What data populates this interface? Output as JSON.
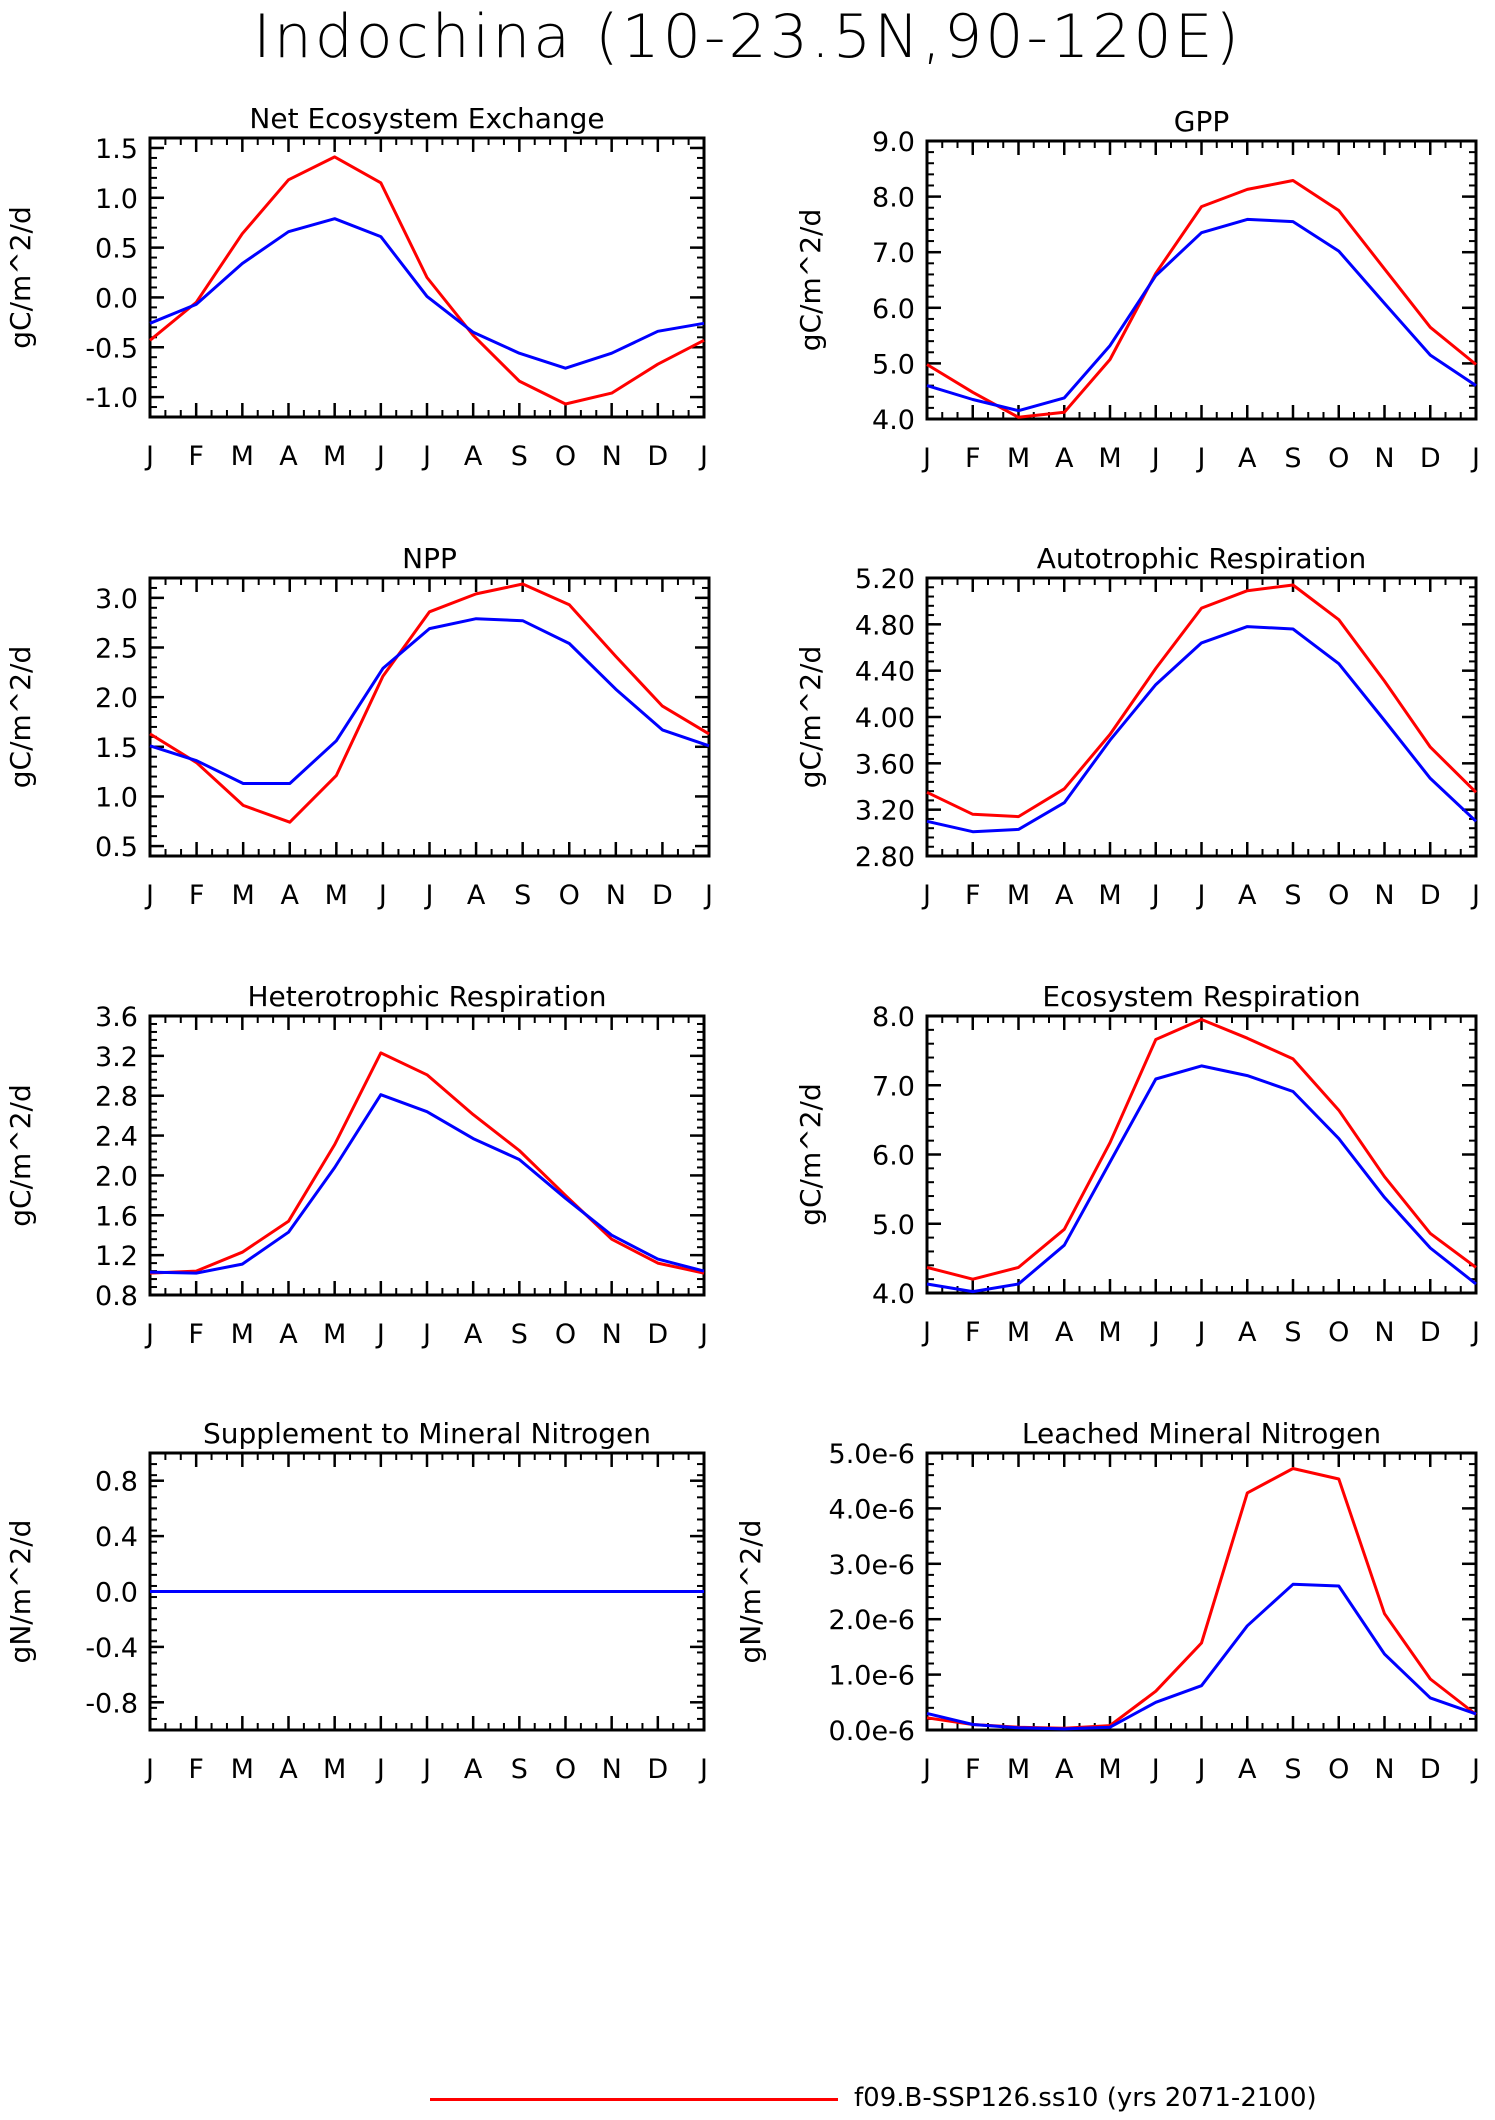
{
  "title": "Indochina (10-23.5N,90-120E)",
  "legend": {
    "label": "f09.B-SSP126.ss10 (yrs 2071-2100)",
    "color": "#ff0000"
  },
  "colors": {
    "red_series": "#ff0000",
    "blue_series": "#0000ff"
  },
  "chart_data": [
    {
      "type": "line",
      "title": "Net Ecosystem Exchange",
      "ylabel": "gC/m^2/d",
      "x": [
        "J",
        "F",
        "M",
        "A",
        "M",
        "J",
        "J",
        "A",
        "S",
        "O",
        "N",
        "D",
        "J"
      ],
      "ylim": [
        -1.2,
        1.6
      ],
      "yticks": [
        -1.0,
        -0.5,
        0.0,
        0.5,
        1.0,
        1.5
      ],
      "ytick_labels": [
        "-1.0",
        "-0.5",
        "0.0",
        "0.5",
        "1.0",
        "1.5"
      ],
      "series": [
        {
          "values": [
            -0.43,
            -0.05,
            0.64,
            1.18,
            1.41,
            1.15,
            0.2,
            -0.38,
            -0.84,
            -1.07,
            -0.96,
            -0.67,
            -0.43
          ]
        },
        {
          "values": [
            -0.26,
            -0.07,
            0.34,
            0.66,
            0.79,
            0.61,
            0.01,
            -0.35,
            -0.56,
            -0.71,
            -0.56,
            -0.34,
            -0.26
          ]
        }
      ]
    },
    {
      "type": "line",
      "title": "GPP",
      "ylabel": "gC/m^2/d",
      "x": [
        "J",
        "F",
        "M",
        "A",
        "M",
        "J",
        "J",
        "A",
        "S",
        "O",
        "N",
        "D",
        "J"
      ],
      "ylim": [
        4.0,
        9.0
      ],
      "yticks": [
        4.0,
        5.0,
        6.0,
        7.0,
        8.0,
        9.0
      ],
      "ytick_labels": [
        "4.0",
        "5.0",
        "6.0",
        "7.0",
        "8.0",
        "9.0"
      ],
      "series": [
        {
          "values": [
            4.98,
            4.48,
            4.03,
            4.12,
            5.07,
            6.62,
            7.82,
            8.13,
            8.29,
            7.75,
            6.7,
            5.65,
            4.98
          ]
        },
        {
          "values": [
            4.6,
            4.35,
            4.15,
            4.38,
            5.32,
            6.58,
            7.35,
            7.59,
            7.55,
            7.02,
            6.08,
            5.15,
            4.6
          ]
        }
      ]
    },
    {
      "type": "line",
      "title": "NPP",
      "ylabel": "gC/m^2/d",
      "x": [
        "J",
        "F",
        "M",
        "A",
        "M",
        "J",
        "J",
        "A",
        "S",
        "O",
        "N",
        "D",
        "J"
      ],
      "ylim": [
        0.4,
        3.2
      ],
      "yticks": [
        0.5,
        1.0,
        1.5,
        2.0,
        2.5,
        3.0
      ],
      "ytick_labels": [
        "0.5",
        "1.0",
        "1.5",
        "2.0",
        "2.5",
        "3.0"
      ],
      "series": [
        {
          "values": [
            1.63,
            1.34,
            0.91,
            0.74,
            1.21,
            2.21,
            2.86,
            3.04,
            3.14,
            2.93,
            2.41,
            1.91,
            1.63
          ]
        },
        {
          "values": [
            1.51,
            1.36,
            1.13,
            1.13,
            1.56,
            2.29,
            2.69,
            2.79,
            2.77,
            2.54,
            2.08,
            1.67,
            1.51
          ]
        }
      ]
    },
    {
      "type": "line",
      "title": "Autotrophic Respiration",
      "ylabel": "gC/m^2/d",
      "x": [
        "J",
        "F",
        "M",
        "A",
        "M",
        "J",
        "J",
        "A",
        "S",
        "O",
        "N",
        "D",
        "J"
      ],
      "ylim": [
        2.8,
        5.2
      ],
      "yticks": [
        2.8,
        3.2,
        3.6,
        4.0,
        4.4,
        4.8,
        5.2
      ],
      "ytick_labels": [
        "2.80",
        "3.20",
        "3.60",
        "4.00",
        "4.40",
        "4.80",
        "5.20"
      ],
      "series": [
        {
          "values": [
            3.35,
            3.16,
            3.14,
            3.38,
            3.85,
            4.42,
            4.94,
            5.09,
            5.14,
            4.84,
            4.31,
            3.74,
            3.35
          ]
        },
        {
          "values": [
            3.1,
            3.01,
            3.03,
            3.26,
            3.8,
            4.28,
            4.64,
            4.78,
            4.76,
            4.46,
            3.97,
            3.47,
            3.1
          ]
        }
      ]
    },
    {
      "type": "line",
      "title": "Heterotrophic Respiration",
      "ylabel": "gC/m^2/d",
      "x": [
        "J",
        "F",
        "M",
        "A",
        "M",
        "J",
        "J",
        "A",
        "S",
        "O",
        "N",
        "D",
        "J"
      ],
      "ylim": [
        0.8,
        3.6
      ],
      "yticks": [
        0.8,
        1.2,
        1.6,
        2.0,
        2.4,
        2.8,
        3.2,
        3.6
      ],
      "ytick_labels": [
        "0.8",
        "1.2",
        "1.6",
        "2.0",
        "2.4",
        "2.8",
        "3.2",
        "3.6"
      ],
      "series": [
        {
          "values": [
            1.02,
            1.04,
            1.23,
            1.54,
            2.31,
            3.23,
            3.01,
            2.61,
            2.25,
            1.8,
            1.36,
            1.12,
            1.02
          ]
        },
        {
          "values": [
            1.03,
            1.02,
            1.11,
            1.43,
            2.08,
            2.81,
            2.64,
            2.37,
            2.16,
            1.77,
            1.4,
            1.16,
            1.04
          ]
        }
      ]
    },
    {
      "type": "line",
      "title": "Ecosystem Respiration",
      "ylabel": "gC/m^2/d",
      "x": [
        "J",
        "F",
        "M",
        "A",
        "M",
        "J",
        "J",
        "A",
        "S",
        "O",
        "N",
        "D",
        "J"
      ],
      "ylim": [
        4.0,
        8.0
      ],
      "yticks": [
        4.0,
        5.0,
        6.0,
        7.0,
        8.0
      ],
      "ytick_labels": [
        "4.0",
        "5.0",
        "6.0",
        "7.0",
        "8.0"
      ],
      "series": [
        {
          "values": [
            4.37,
            4.2,
            4.37,
            4.92,
            6.17,
            7.66,
            7.95,
            7.68,
            7.38,
            6.64,
            5.68,
            4.86,
            4.37
          ]
        },
        {
          "values": [
            4.13,
            4.02,
            4.13,
            4.69,
            5.89,
            7.09,
            7.28,
            7.14,
            6.91,
            6.23,
            5.38,
            4.65,
            4.13
          ]
        }
      ]
    },
    {
      "type": "line",
      "title": "Supplement to Mineral Nitrogen",
      "ylabel": "gN/m^2/d",
      "x": [
        "J",
        "F",
        "M",
        "A",
        "M",
        "J",
        "J",
        "A",
        "S",
        "O",
        "N",
        "D",
        "J"
      ],
      "ylim": [
        -1.0,
        1.0
      ],
      "yticks": [
        -0.8,
        -0.4,
        0.0,
        0.4,
        0.8
      ],
      "ytick_labels": [
        "-0.8",
        "-0.4",
        "0.0",
        "0.4",
        "0.8"
      ],
      "series": [
        {
          "values": [
            0,
            0,
            0,
            0,
            0,
            0,
            0,
            0,
            0,
            0,
            0,
            0,
            0
          ]
        },
        {
          "values": [
            0,
            0,
            0,
            0,
            0,
            0,
            0,
            0,
            0,
            0,
            0,
            0,
            0
          ]
        }
      ]
    },
    {
      "type": "line",
      "title": "Leached Mineral Nitrogen",
      "ylabel": "gN/m^2/d",
      "x": [
        "J",
        "F",
        "M",
        "A",
        "M",
        "J",
        "J",
        "A",
        "S",
        "O",
        "N",
        "D",
        "J"
      ],
      "ylim": [
        0.0,
        5e-06
      ],
      "yticks": [
        0.0,
        1e-06,
        2e-06,
        3e-06,
        4e-06,
        5e-06
      ],
      "ytick_labels": [
        "0.0e-6",
        "1.0e-6",
        "2.0e-6",
        "3.0e-6",
        "4.0e-6",
        "5.0e-6"
      ],
      "series": [
        {
          "values": [
            2.2e-07,
            1e-07,
            5e-08,
            3e-08,
            8e-08,
            7e-07,
            1.57e-06,
            4.28e-06,
            4.72e-06,
            4.53e-06,
            2.1e-06,
            9.2e-07,
            2.8e-07
          ]
        },
        {
          "values": [
            3e-07,
            1e-07,
            4e-08,
            2e-08,
            5e-08,
            5e-07,
            8e-07,
            1.88e-06,
            2.63e-06,
            2.6e-06,
            1.37e-06,
            5.8e-07,
            2.9e-07
          ]
        }
      ]
    }
  ]
}
